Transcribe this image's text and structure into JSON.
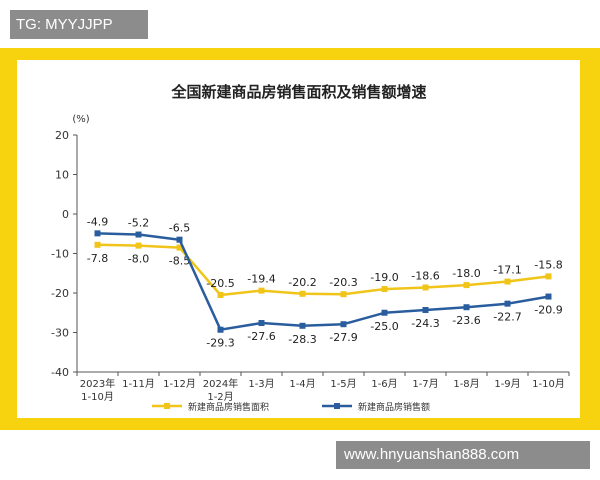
{
  "tag": "TG: MYYJJPP",
  "watermark": "www.hnyuanshan888.com",
  "colors": {
    "frame": "#f7d20e",
    "area_series": "#f0c419",
    "sales_series": "#2a5d9e",
    "axis": "#555555"
  },
  "chart_data": {
    "type": "line",
    "title": "全国新建商品房销售面积及销售额增速",
    "ylabel": "(%)",
    "ylim": [
      -40,
      20
    ],
    "yticks": [
      20,
      10,
      0,
      -10,
      -20,
      -30,
      -40
    ],
    "grid": false,
    "legend_position": "bottom",
    "categories": [
      [
        "2023年",
        "1-10月"
      ],
      [
        "1-11月"
      ],
      [
        "1-12月"
      ],
      [
        "2024年",
        "1-2月"
      ],
      [
        "1-3月"
      ],
      [
        "1-4月"
      ],
      [
        "1-5月"
      ],
      [
        "1-6月"
      ],
      [
        "1-7月"
      ],
      [
        "1-8月"
      ],
      [
        "1-9月"
      ],
      [
        "1-10月"
      ]
    ],
    "series": [
      {
        "name": "新建商品房销售面积",
        "values": [
          -7.8,
          -8.0,
          -8.5,
          -20.5,
          -19.4,
          -20.2,
          -20.3,
          -19.0,
          -18.6,
          -18.0,
          -17.1,
          -15.8
        ],
        "labels": [
          "-7.8",
          "-8.0",
          "-8.5",
          "-20.5",
          "-19.4",
          "-20.2",
          "-20.3",
          "-19.0",
          "-18.6",
          "-18.0",
          "-17.1",
          "-15.8"
        ]
      },
      {
        "name": "新建商品房销售额",
        "values": [
          -4.9,
          -5.2,
          -6.5,
          -29.3,
          -27.6,
          -28.3,
          -27.9,
          -25.0,
          -24.3,
          -23.6,
          -22.7,
          -20.9
        ],
        "labels": [
          "-4.9",
          "-5.2",
          "-6.5",
          "-29.3",
          "-27.6",
          "-28.3",
          "-27.9",
          "-25.0",
          "-24.3",
          "-23.6",
          "-22.7",
          "-20.9"
        ]
      }
    ]
  }
}
